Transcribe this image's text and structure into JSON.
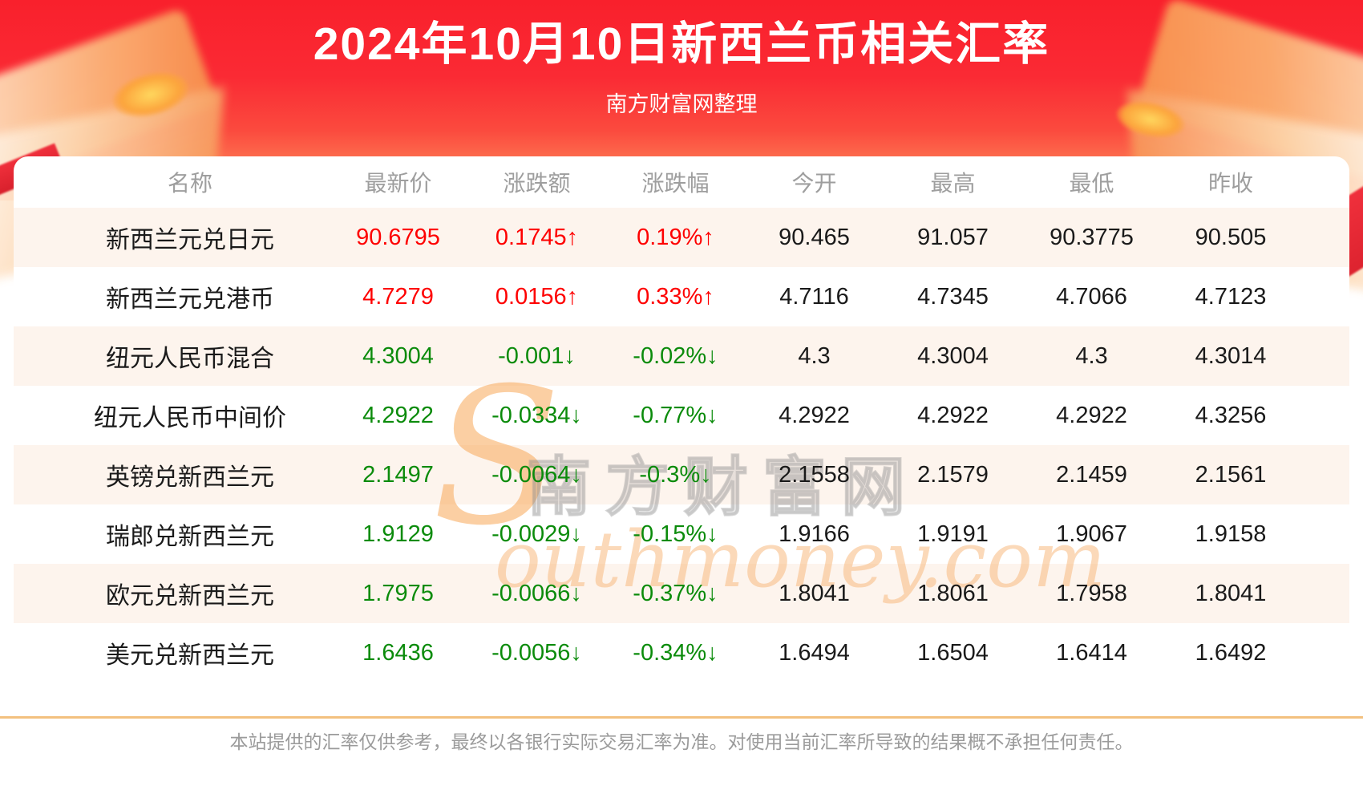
{
  "page": {
    "title": "2024年10月10日新西兰币相关汇率",
    "subtitle": "南方财富网整理",
    "disclaimer": "本站提供的汇率仅供参考，最终以各银行实际交易汇率为准。对使用当前汇率所导致的结果概不承担任何责任。"
  },
  "watermark": {
    "initial": "S",
    "script_text": "outhmoney.com",
    "cn_text": "南方财富网"
  },
  "colors": {
    "up_text": "#fe0000",
    "down_text": "#0b8b0b",
    "banner_top": "#f9202c",
    "banner_bottom": "#fe9b71",
    "row_alt_bg": "#fdf4ed",
    "header_text": "#9e9e9e",
    "divider": "#f3c17f"
  },
  "chart_data": {
    "type": "table",
    "title": "2024年10月10日新西兰币相关汇率",
    "columns": [
      "名称",
      "最新价",
      "涨跌额",
      "涨跌幅",
      "今开",
      "最高",
      "最低",
      "昨收"
    ],
    "rows": [
      {
        "name": "新西兰元兑日元",
        "latest": "90.6795",
        "change": "0.1745↑",
        "change_pct": "0.19%↑",
        "open": "90.465",
        "high": "91.057",
        "low": "90.3775",
        "prev_close": "90.505",
        "direction": "up"
      },
      {
        "name": "新西兰元兑港币",
        "latest": "4.7279",
        "change": "0.0156↑",
        "change_pct": "0.33%↑",
        "open": "4.7116",
        "high": "4.7345",
        "low": "4.7066",
        "prev_close": "4.7123",
        "direction": "up"
      },
      {
        "name": "纽元人民币混合",
        "latest": "4.3004",
        "change": "-0.001↓",
        "change_pct": "-0.02%↓",
        "open": "4.3",
        "high": "4.3004",
        "low": "4.3",
        "prev_close": "4.3014",
        "direction": "down"
      },
      {
        "name": "纽元人民币中间价",
        "latest": "4.2922",
        "change": "-0.0334↓",
        "change_pct": "-0.77%↓",
        "open": "4.2922",
        "high": "4.2922",
        "low": "4.2922",
        "prev_close": "4.3256",
        "direction": "down"
      },
      {
        "name": "英镑兑新西兰元",
        "latest": "2.1497",
        "change": "-0.0064↓",
        "change_pct": "-0.3%↓",
        "open": "2.1558",
        "high": "2.1579",
        "low": "2.1459",
        "prev_close": "2.1561",
        "direction": "down"
      },
      {
        "name": "瑞郎兑新西兰元",
        "latest": "1.9129",
        "change": "-0.0029↓",
        "change_pct": "-0.15%↓",
        "open": "1.9166",
        "high": "1.9191",
        "low": "1.9067",
        "prev_close": "1.9158",
        "direction": "down"
      },
      {
        "name": "欧元兑新西兰元",
        "latest": "1.7975",
        "change": "-0.0066↓",
        "change_pct": "-0.37%↓",
        "open": "1.8041",
        "high": "1.8061",
        "low": "1.7958",
        "prev_close": "1.8041",
        "direction": "down"
      },
      {
        "name": "美元兑新西兰元",
        "latest": "1.6436",
        "change": "-0.0056↓",
        "change_pct": "-0.34%↓",
        "open": "1.6494",
        "high": "1.6504",
        "low": "1.6414",
        "prev_close": "1.6492",
        "direction": "down"
      }
    ]
  }
}
